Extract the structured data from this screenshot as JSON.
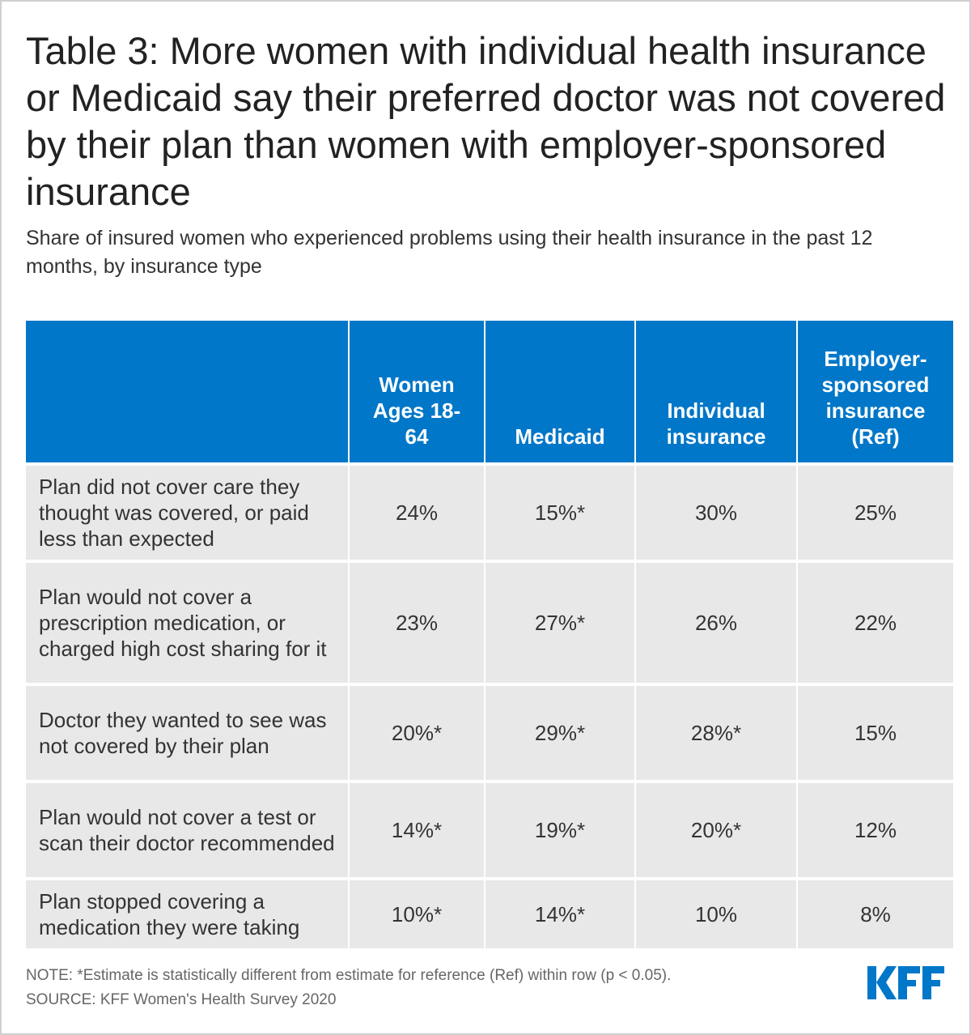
{
  "title": "Table 3: More women with individual health insurance or Medicaid say their preferred doctor was not covered by their plan than women with employer-sponsored insurance",
  "subtitle": "Share of insured women who experienced problems using their health insurance in the past 12 months, by insurance type",
  "chart_data": {
    "type": "table",
    "columns": [
      "",
      "Women Ages 18-64",
      "Medicaid",
      "Individual insurance",
      "Employer-sponsored insurance (Ref)"
    ],
    "rows": [
      {
        "label": "Plan did not cover care they thought was covered, or paid less than expected",
        "values": [
          "24%",
          "15%*",
          "30%",
          "25%"
        ]
      },
      {
        "label": "Plan would not cover a prescription medication, or charged high cost sharing for it",
        "values": [
          "23%",
          "27%*",
          "26%",
          "22%"
        ]
      },
      {
        "label": "Doctor they wanted to see was not covered by their plan",
        "values": [
          "20%*",
          "29%*",
          "28%*",
          "15%"
        ]
      },
      {
        "label": "Plan would not cover a test or scan their doctor recommended",
        "values": [
          "14%*",
          "19%*",
          "20%*",
          "12%"
        ]
      },
      {
        "label": "Plan stopped covering a medication they were taking",
        "values": [
          "10%*",
          "14%*",
          "10%",
          "8%"
        ]
      }
    ]
  },
  "note": "NOTE: *Estimate is statistically different from estimate for reference (Ref) within row (p < 0.05).",
  "source": "SOURCE: KFF Women's Health Survey 2020",
  "logo": "KFF",
  "colors": {
    "header": "#0077c8",
    "row": "#e8e8e8",
    "logo": "#0077c8"
  }
}
